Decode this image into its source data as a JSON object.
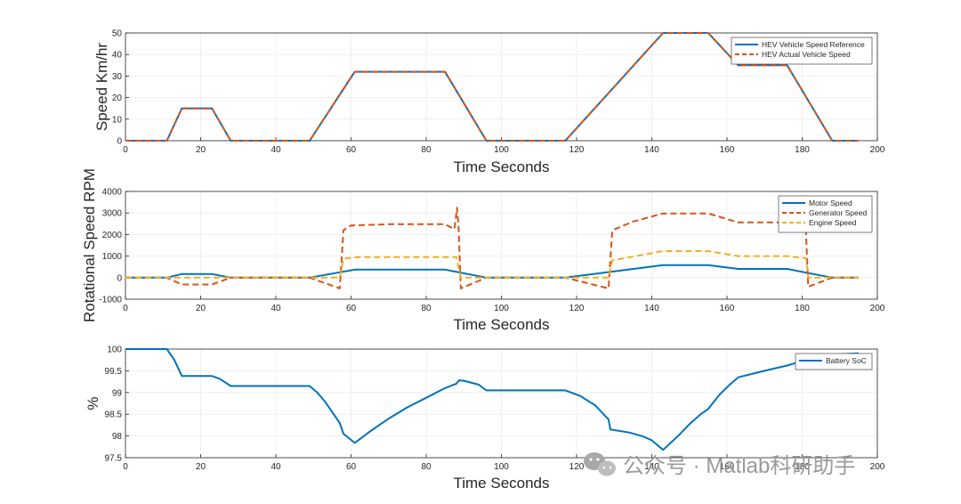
{
  "chart_data": [
    {
      "type": "line",
      "title": "",
      "xlabel": "Time Seconds",
      "ylabel": "Speed Km/hr",
      "xlim": [
        0,
        200
      ],
      "ylim": [
        0,
        50
      ],
      "xticks": [
        "0",
        "20",
        "40",
        "60",
        "80",
        "100",
        "120",
        "140",
        "160",
        "180",
        "200"
      ],
      "yticks": [
        "0",
        "10",
        "20",
        "30",
        "40",
        "50"
      ],
      "grid": true,
      "legend_position": "top-right",
      "series": [
        {
          "name": "HEV Vehicle Speed Reference",
          "color": "#0072BD",
          "style": "solid",
          "x": [
            0,
            11,
            15,
            23,
            28,
            49,
            61,
            85,
            96,
            117,
            143,
            155,
            163,
            176,
            188,
            195
          ],
          "y": [
            0,
            0,
            15,
            15,
            0,
            0,
            32,
            32,
            0,
            0,
            50,
            50,
            35,
            35,
            0,
            0
          ]
        },
        {
          "name": "HEV Actual Vehicle Speed",
          "color": "#D95319",
          "style": "dashed",
          "x": [
            0,
            11,
            15,
            23,
            28,
            49,
            61,
            85,
            96,
            117,
            143,
            155,
            163,
            176,
            188,
            195
          ],
          "y": [
            0,
            0,
            15,
            15,
            0,
            0,
            32,
            32,
            0,
            0,
            50,
            50,
            35,
            35,
            0,
            0
          ]
        }
      ]
    },
    {
      "type": "line",
      "title": "",
      "xlabel": "Time Seconds",
      "ylabel": "Rotational Speed RPM",
      "xlim": [
        0,
        200
      ],
      "ylim": [
        -1000,
        4000
      ],
      "xticks": [
        "0",
        "20",
        "40",
        "60",
        "80",
        "100",
        "120",
        "140",
        "160",
        "180",
        "200"
      ],
      "yticks": [
        "-1000",
        "0",
        "1000",
        "2000",
        "3000",
        "4000"
      ],
      "grid": true,
      "legend_position": "top-right",
      "series": [
        {
          "name": "Motor Speed",
          "color": "#0072BD",
          "style": "solid",
          "x": [
            0,
            11,
            15,
            23,
            28,
            49,
            61,
            85,
            96,
            117,
            143,
            155,
            163,
            176,
            188,
            195
          ],
          "y": [
            0,
            0,
            170,
            170,
            0,
            0,
            370,
            370,
            0,
            0,
            580,
            580,
            405,
            405,
            0,
            0
          ]
        },
        {
          "name": "Generator Speed",
          "color": "#D95319",
          "style": "dashed",
          "x": [
            0,
            11,
            15,
            23,
            28,
            49,
            57,
            58,
            60,
            70,
            85,
            87.5,
            88.2,
            88.6,
            89.2,
            96,
            117,
            128.5,
            129.5,
            135,
            143,
            155,
            163,
            176,
            181,
            181.6,
            188,
            195
          ],
          "y": [
            0,
            0,
            -320,
            -320,
            0,
            0,
            -500,
            2200,
            2420,
            2480,
            2480,
            2250,
            3250,
            2400,
            -500,
            0,
            0,
            -500,
            2200,
            2600,
            2980,
            2980,
            2560,
            2560,
            2200,
            -420,
            0,
            0
          ]
        },
        {
          "name": "Engine Speed",
          "color": "#EDB120",
          "style": "dashed",
          "x": [
            0,
            11,
            15,
            23,
            28,
            49,
            57,
            58,
            62,
            85,
            88,
            89.2,
            96,
            117,
            128.5,
            129.5,
            143,
            155,
            163,
            176,
            181,
            181.6,
            188,
            195
          ],
          "y": [
            0,
            0,
            0,
            0,
            0,
            0,
            0,
            880,
            950,
            950,
            950,
            0,
            0,
            0,
            0,
            800,
            1230,
            1230,
            1000,
            1000,
            900,
            0,
            0,
            0
          ]
        }
      ]
    },
    {
      "type": "line",
      "title": "",
      "xlabel": "Time Seconds",
      "ylabel": "%",
      "xlim": [
        0,
        200
      ],
      "ylim": [
        97.5,
        100
      ],
      "xticks": [
        "0",
        "20",
        "40",
        "60",
        "80",
        "100",
        "120",
        "140",
        "160",
        "180",
        "200"
      ],
      "yticks": [
        "97.5",
        "98",
        "98.5",
        "99",
        "99.5",
        "100"
      ],
      "grid": true,
      "legend_position": "top-right",
      "series": [
        {
          "name": "Battery SoC",
          "color": "#0072BD",
          "style": "solid",
          "x": [
            0,
            11,
            13,
            15,
            23,
            25,
            28,
            49,
            51,
            53,
            55,
            57,
            58,
            59,
            61,
            65,
            70,
            75,
            80,
            85,
            87,
            88,
            88.7,
            90,
            94,
            96,
            117,
            121,
            125,
            128.5,
            129,
            134,
            138,
            140,
            143,
            147,
            150,
            153,
            155,
            158,
            161,
            163,
            170,
            176,
            180,
            182,
            188,
            195
          ],
          "y": [
            100,
            100,
            99.75,
            99.38,
            99.38,
            99.32,
            99.15,
            99.15,
            99.0,
            98.8,
            98.55,
            98.3,
            98.05,
            97.98,
            97.84,
            98.1,
            98.4,
            98.66,
            98.88,
            99.1,
            99.17,
            99.2,
            99.28,
            99.27,
            99.18,
            99.05,
            99.05,
            98.92,
            98.7,
            98.38,
            98.15,
            98.08,
            97.98,
            97.9,
            97.68,
            98.0,
            98.27,
            98.5,
            98.62,
            98.95,
            99.2,
            99.35,
            99.5,
            99.62,
            99.72,
            99.8,
            99.87,
            99.9
          ]
        }
      ]
    }
  ],
  "watermark": {
    "text": "公众号 · Matlab科研助手",
    "icon": "wechat-icon"
  }
}
